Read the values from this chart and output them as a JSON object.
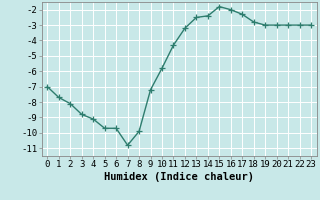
{
  "x": [
    0,
    1,
    2,
    3,
    4,
    5,
    6,
    7,
    8,
    9,
    10,
    11,
    12,
    13,
    14,
    15,
    16,
    17,
    18,
    19,
    20,
    21,
    22,
    23
  ],
  "y": [
    -7.0,
    -7.7,
    -8.1,
    -8.8,
    -9.1,
    -9.7,
    -9.7,
    -10.8,
    -9.9,
    -7.2,
    -5.8,
    -4.3,
    -3.2,
    -2.5,
    -2.4,
    -1.8,
    -2.0,
    -2.3,
    -2.8,
    -3.0,
    -3.0,
    -3.0,
    -3.0,
    -3.0
  ],
  "xlabel": "Humidex (Indice chaleur)",
  "xlim": [
    -0.5,
    23.5
  ],
  "ylim": [
    -11.5,
    -1.5
  ],
  "yticks": [
    -2,
    -3,
    -4,
    -5,
    -6,
    -7,
    -8,
    -9,
    -10,
    -11
  ],
  "xticks": [
    0,
    1,
    2,
    3,
    4,
    5,
    6,
    7,
    8,
    9,
    10,
    11,
    12,
    13,
    14,
    15,
    16,
    17,
    18,
    19,
    20,
    21,
    22,
    23
  ],
  "line_color": "#2e7d6e",
  "bg_color": "#c8e8e8",
  "grid_color": "#ffffff",
  "marker": "+",
  "marker_size": 4,
  "line_width": 1.0,
  "xlabel_fontsize": 7.5,
  "tick_fontsize": 6.5
}
